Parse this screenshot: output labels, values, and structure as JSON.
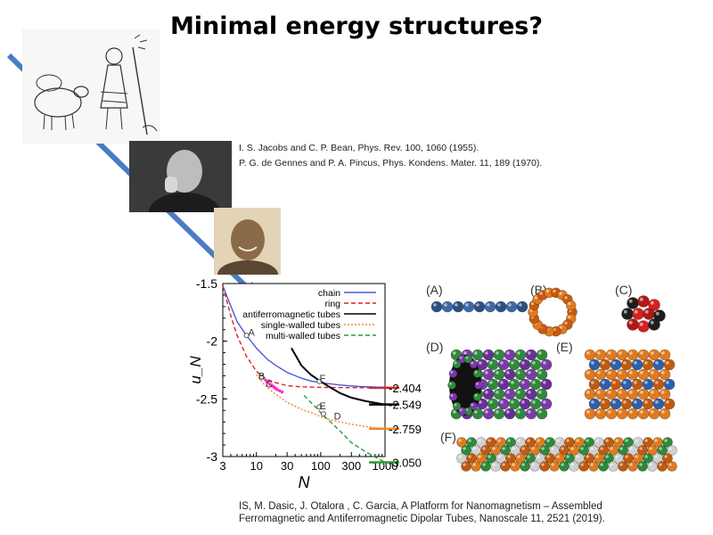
{
  "slide": {
    "title": "Minimal energy structures?",
    "references": [
      "I. S. Jacobs and C. P. Bean, Phys. Rev. 100, 1060 (1955).",
      "P. G. de Gennes and P. A. Pincus, Phys. Kondens. Mater. 11, 189 (1970)."
    ],
    "citation": [
      "IS, M. Dasic, J. Otalora , C. Garcia,  A Platform for Nanomagnetism – Assembled",
      "Ferromagnetic and Antiferromagnetic Dipolar Tubes, Nanoscale 11, 2521 (2019)."
    ],
    "arrow_color": "#4a7cc4"
  },
  "panels": {
    "labels": [
      "(A)",
      "(B)",
      "(C)",
      "(D)",
      "(E)",
      "(F)"
    ]
  },
  "chart_data": {
    "type": "line",
    "xscale": "log",
    "xlim": [
      3,
      1000
    ],
    "ylim": [
      -3.0,
      -1.5
    ],
    "xlabel": "N",
    "ylabel": "u_N",
    "xticks": [
      "3",
      "10",
      "30",
      "100",
      "300",
      "1000"
    ],
    "yticks": [
      "-1.5",
      "-2",
      "-2.5",
      "-3"
    ],
    "legend_position": "top-right",
    "series": [
      {
        "name": "chain",
        "color": "#4a5adc",
        "style": "solid",
        "x": [
          3,
          5,
          7,
          10,
          15,
          20,
          30,
          50,
          70,
          100,
          200,
          400,
          1000
        ],
        "y": [
          -1.52,
          -1.83,
          -1.95,
          -2.06,
          -2.16,
          -2.21,
          -2.27,
          -2.32,
          -2.345,
          -2.36,
          -2.38,
          -2.393,
          -2.4
        ]
      },
      {
        "name": "ring",
        "color": "#e02020",
        "style": "dashed",
        "x": [
          3,
          4,
          5,
          7,
          10,
          13,
          20,
          30,
          50,
          100,
          300,
          1000
        ],
        "y": [
          -1.52,
          -1.78,
          -1.95,
          -2.13,
          -2.26,
          -2.32,
          -2.36,
          -2.385,
          -2.395,
          -2.4,
          -2.403,
          -2.404
        ]
      },
      {
        "name": "antiferromagnetic tubes",
        "color": "#000000",
        "style": "solid",
        "x": [
          35,
          50,
          70,
          100,
          150,
          200,
          300,
          500,
          1000
        ],
        "y": [
          -2.06,
          -2.21,
          -2.29,
          -2.35,
          -2.41,
          -2.45,
          -2.49,
          -2.52,
          -2.549
        ]
      },
      {
        "name": "single-walled tubes",
        "color": "#ee8a2a",
        "style": "dotted",
        "x": [
          10,
          13,
          17,
          20,
          30,
          50,
          80,
          100,
          150,
          200,
          300,
          500,
          1000
        ],
        "y": [
          -2.29,
          -2.37,
          -2.43,
          -2.46,
          -2.53,
          -2.59,
          -2.63,
          -2.655,
          -2.685,
          -2.7,
          -2.72,
          -2.74,
          -2.759
        ]
      },
      {
        "name": "multi-walled tubes",
        "color": "#2e9a2e",
        "style": "dashed",
        "x": [
          55,
          70,
          90,
          100,
          130,
          200,
          300,
          500,
          1000
        ],
        "y": [
          -2.47,
          -2.53,
          -2.59,
          -2.62,
          -2.68,
          -2.78,
          -2.88,
          -2.96,
          -3.05
        ]
      }
    ],
    "pink_marks": {
      "color": "#ff33cc",
      "x": [
        13,
        14,
        15,
        16,
        17,
        18,
        19,
        20,
        21,
        23,
        25
      ],
      "y": [
        -2.32,
        -2.34,
        -2.355,
        -2.37,
        -2.38,
        -2.39,
        -2.4,
        -2.41,
        -2.42,
        -2.43,
        -2.44
      ]
    },
    "annotations": [
      {
        "text": "A",
        "x": 7,
        "y": -1.92
      },
      {
        "text": "B",
        "x": 10,
        "y": -2.3
      },
      {
        "text": "C",
        "x": 13,
        "y": -2.37
      },
      {
        "text": "D",
        "x": 150,
        "y": -2.65
      },
      {
        "text": "E",
        "x": 90,
        "y": -2.56
      },
      {
        "text": "F",
        "x": 90,
        "y": -2.32
      }
    ],
    "markers": [
      {
        "x": 7,
        "y": -1.95
      },
      {
        "x": 12,
        "y": -2.31
      },
      {
        "x": 95,
        "y": -2.35
      },
      {
        "x": 95,
        "y": -2.57
      },
      {
        "x": 110,
        "y": -2.63
      }
    ],
    "limit_labels": [
      {
        "text": "-2.404",
        "value": -2.404,
        "color": "#e02020"
      },
      {
        "text": "-2.549",
        "value": -2.549,
        "color": "#000000"
      },
      {
        "text": "-2.759",
        "value": -2.759,
        "color": "#ee8a2a"
      },
      {
        "text": "-3.050",
        "value": -3.05,
        "color": "#2e9a2e"
      }
    ]
  }
}
